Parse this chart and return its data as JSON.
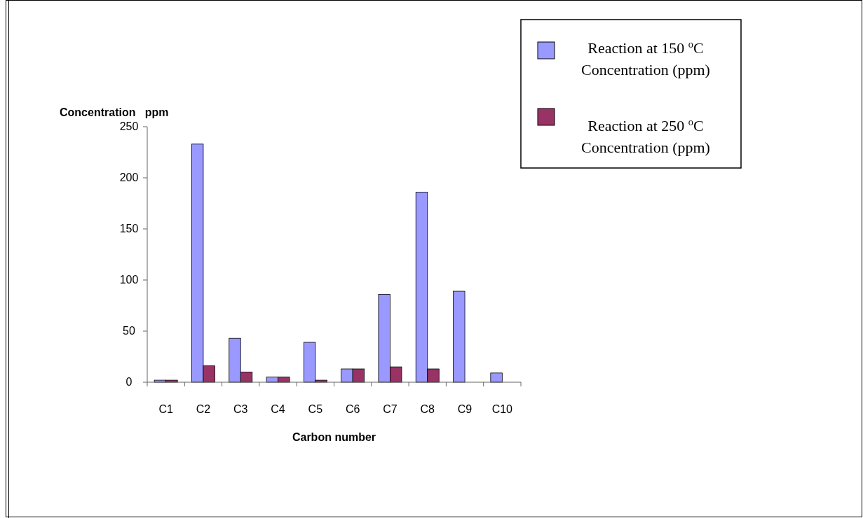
{
  "chart_data": {
    "type": "bar",
    "xlabel": "Carbon number",
    "ylabel": "Concentration   ppm",
    "categories": [
      "C1",
      "C2",
      "C3",
      "C4",
      "C5",
      "C6",
      "C7",
      "C8",
      "C9",
      "C10"
    ],
    "series": [
      {
        "name": "Reaction at 150 $^{o}$C\nConcentration (ppm)",
        "color": "#9999ff",
        "values": [
          2,
          233,
          43,
          5,
          39,
          13,
          86,
          186,
          89,
          9
        ]
      },
      {
        "name": "Reaction at 250 $^{o}$C\nConcentration (ppm)",
        "color": "#993366",
        "values": [
          2,
          16,
          10,
          5,
          2,
          13,
          15,
          13,
          null,
          null
        ]
      }
    ],
    "ylim": [
      0,
      250
    ],
    "yticks": [
      0,
      50,
      100,
      150,
      200,
      250
    ],
    "grid": false,
    "legend": "top right"
  }
}
